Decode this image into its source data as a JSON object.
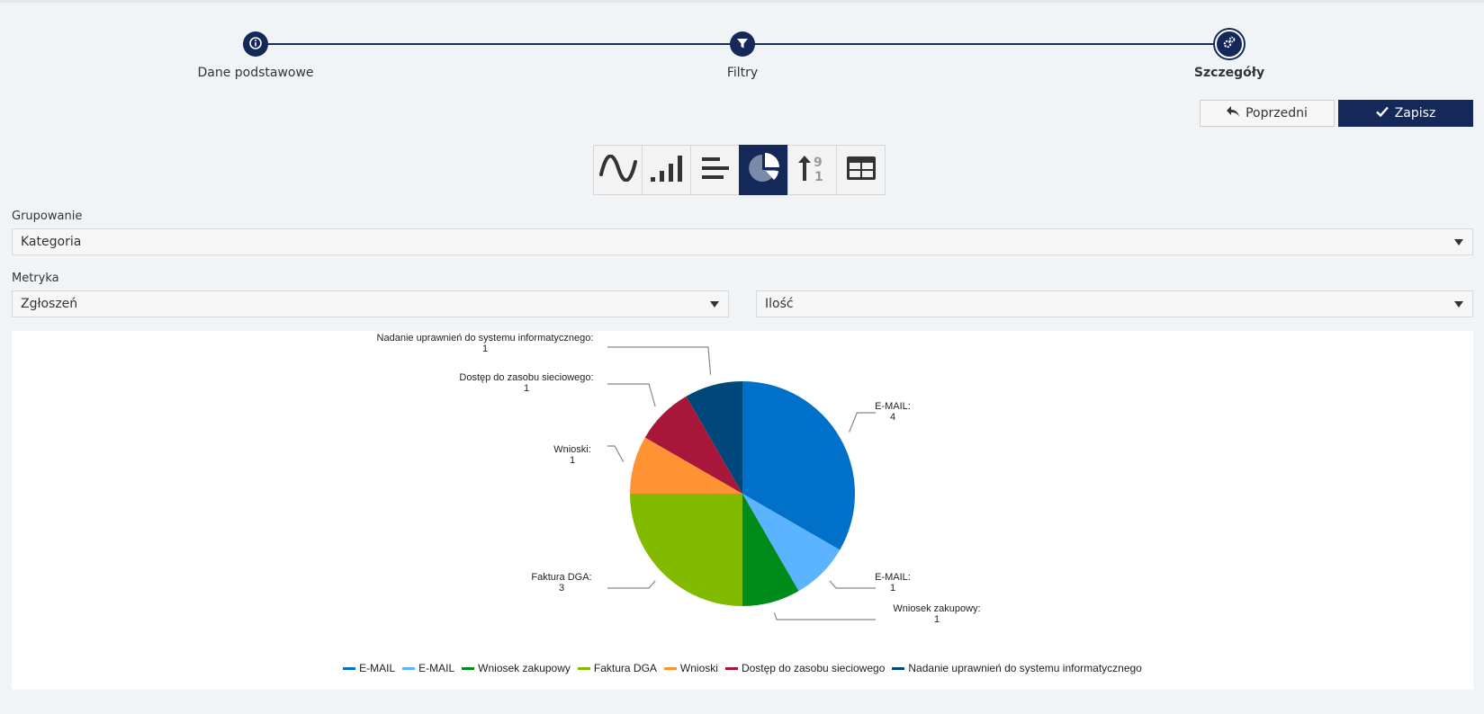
{
  "stepper": {
    "steps": [
      {
        "label": "Dane podstawowe"
      },
      {
        "label": "Filtry"
      },
      {
        "label": "Szczegóły"
      }
    ]
  },
  "actions": {
    "prev_label": "Poprzedni",
    "save_label": "Zapisz"
  },
  "chart_types": [
    "line-chart-icon",
    "column-chart-icon",
    "bar-chart-icon",
    "pie-chart-icon",
    "sort-numeric-icon",
    "table-icon"
  ],
  "form": {
    "grouping_label": "Grupowanie",
    "grouping_value": "Kategoria",
    "metric_label": "Metryka",
    "metric_value": "Zgłoszeń",
    "metric_agg_value": "Ilość"
  },
  "chart_data": {
    "type": "pie",
    "slices": [
      {
        "name": "E-MAIL",
        "value": 4,
        "color": "#0070c8"
      },
      {
        "name": "E-MAIL",
        "value": 1,
        "color": "#5cb3ff"
      },
      {
        "name": "Wniosek zakupowy",
        "value": 1,
        "color": "#008c1b"
      },
      {
        "name": "Faktura DGA",
        "value": 3,
        "color": "#82ba00"
      },
      {
        "name": "Wnioski",
        "value": 1,
        "color": "#ff9232"
      },
      {
        "name": "Dostęp do zasobu sieciowego",
        "value": 1,
        "color": "#a8173a"
      },
      {
        "name": "Nadanie uprawnień do systemu informatycznego",
        "value": 1,
        "color": "#00487a"
      }
    ],
    "legend_position": "bottom"
  }
}
